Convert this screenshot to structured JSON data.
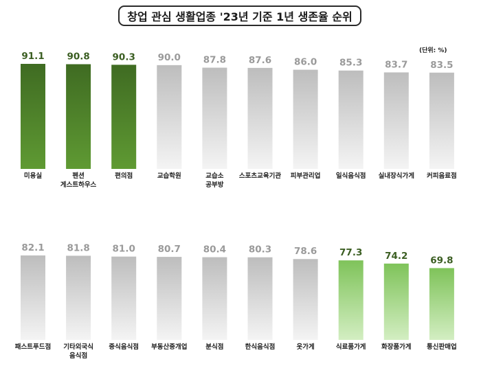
{
  "title": "창업 관심 생활업종 '23년 기준 1년 생존율 순위",
  "unit": "(단위: %)",
  "colors": {
    "top_dark": "#3f6b22",
    "top_light": "#5f9a33",
    "bottom_dark": "#7fc35a",
    "bottom_light": "#d3eec2",
    "gray_top": "#bdbdbd",
    "gray_bottom": "#f4f4f4",
    "value_green": "#3b5e22",
    "value_gray": "#9a9a9a"
  },
  "chart_data": [
    {
      "type": "bar",
      "categories": [
        "미용실",
        "펜션\n게스트하우스",
        "편의점",
        "교습학원",
        "교습소\n공부방",
        "스포츠교육기관",
        "피부관리업",
        "일식음식점",
        "실내장식가게",
        "커피음료점"
      ],
      "values": [
        91.1,
        90.8,
        90.3,
        90.0,
        87.8,
        87.6,
        86.0,
        85.3,
        83.7,
        83.5
      ],
      "value_labels": [
        "91.1",
        "90.8",
        "90.3",
        "90.0",
        "87.8",
        "87.6",
        "86.0",
        "85.3",
        "83.7",
        "83.5"
      ],
      "highlight": [
        "dark",
        "dark",
        "dark",
        "none",
        "none",
        "none",
        "none",
        "none",
        "none",
        "none"
      ],
      "ylim": [
        0,
        100
      ]
    },
    {
      "type": "bar",
      "categories": [
        "패스트푸드점",
        "기타외국식\n음식점",
        "중식음식점",
        "부동산중개업",
        "분식점",
        "한식음식점",
        "옷가게",
        "식료품가게",
        "화장품가게",
        "통신판매업"
      ],
      "values": [
        82.1,
        81.8,
        81.0,
        80.7,
        80.4,
        80.3,
        78.6,
        77.3,
        74.2,
        69.8
      ],
      "value_labels": [
        "82.1",
        "81.8",
        "81.0",
        "80.7",
        "80.4",
        "80.3",
        "78.6",
        "77.3",
        "74.2",
        "69.8"
      ],
      "highlight": [
        "none",
        "none",
        "none",
        "none",
        "none",
        "none",
        "none",
        "light",
        "light",
        "light"
      ],
      "ylim": [
        0,
        100
      ]
    }
  ]
}
